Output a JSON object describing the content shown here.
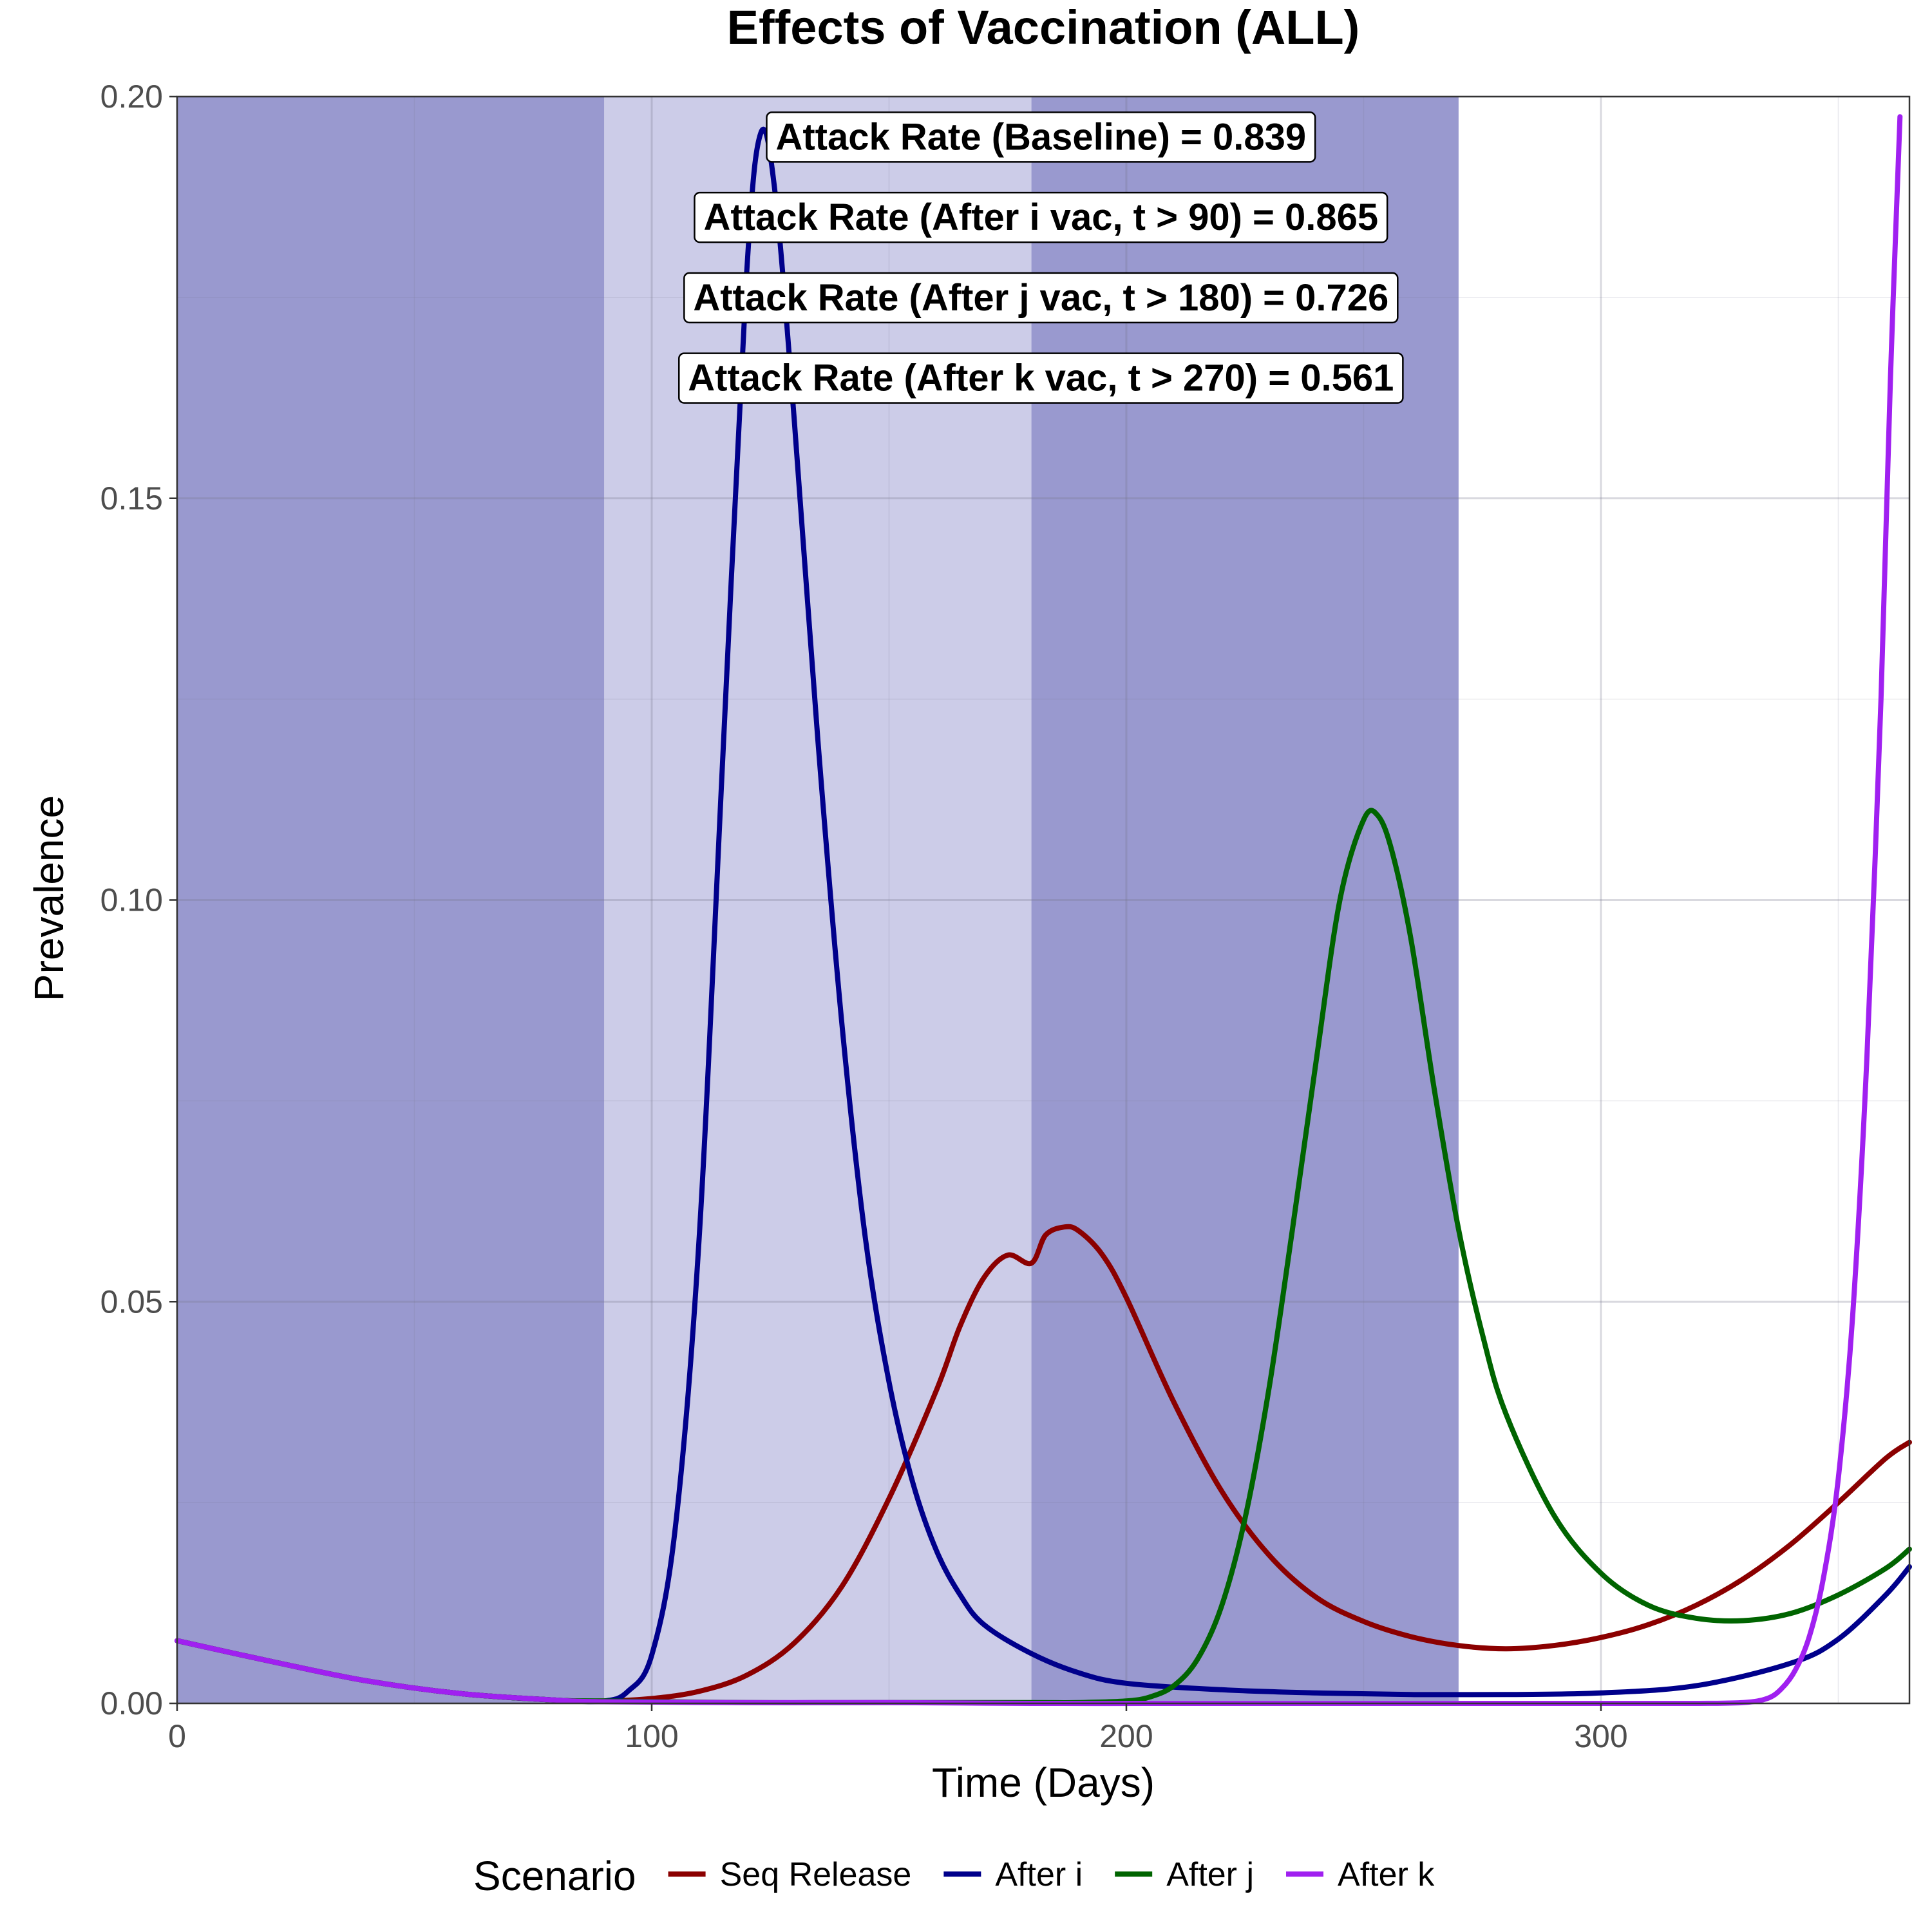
{
  "chart_data": {
    "type": "line",
    "title": "Effects of Vaccination (ALL)",
    "xlabel": "Time (Days)",
    "ylabel": "Prevalence",
    "xlim": [
      0,
      365
    ],
    "ylim": [
      0,
      0.2
    ],
    "x_ticks": [
      0,
      100,
      200,
      300
    ],
    "x_tick_labels": [
      "0",
      "100",
      "200",
      "300"
    ],
    "y_ticks": [
      0,
      0.05,
      0.1,
      0.15,
      0.2
    ],
    "y_tick_labels": [
      "0.00",
      "0.05",
      "0.10",
      "0.15",
      "0.20"
    ],
    "grid": true,
    "background_bands": [
      {
        "from": 0,
        "to": 90,
        "color": "#9999cf"
      },
      {
        "from": 90,
        "to": 180,
        "color": "#ccccE8"
      },
      {
        "from": 180,
        "to": 270,
        "color": "#9999cf"
      }
    ],
    "legend": {
      "title": "Scenario",
      "placement": "bottom",
      "entries": [
        {
          "label": "Seq Release",
          "color": "#8b0000"
        },
        {
          "label": "After i",
          "color": "#00008b"
        },
        {
          "label": "After j",
          "color": "#006400"
        },
        {
          "label": "After k",
          "color": "#a020f0"
        }
      ]
    },
    "annotations": [
      {
        "text": "Attack Rate (Baseline) = 0.839",
        "x": 182,
        "y": 0.195
      },
      {
        "text": "Attack Rate (After i vac, t > 90) = 0.865",
        "x": 182,
        "y": 0.185
      },
      {
        "text": "Attack Rate (After j vac, t > 180) = 0.726",
        "x": 182,
        "y": 0.175
      },
      {
        "text": "Attack Rate (After k vac, t > 270) = 0.561",
        "x": 182,
        "y": 0.165
      }
    ],
    "series": [
      {
        "name": "Seq Release",
        "color": "#8b0000",
        "x": [
          0,
          20,
          40,
          60,
          80,
          90,
          100,
          110,
          120,
          130,
          140,
          150,
          160,
          165,
          170,
          175,
          180,
          183,
          187,
          190,
          195,
          200,
          210,
          220,
          230,
          240,
          250,
          260,
          270,
          280,
          290,
          300,
          310,
          320,
          330,
          340,
          350,
          360,
          365
        ],
        "y": [
          0.0078,
          0.0052,
          0.0028,
          0.0012,
          0.0004,
          0.0003,
          0.0006,
          0.0015,
          0.0035,
          0.0075,
          0.0145,
          0.0255,
          0.039,
          0.047,
          0.053,
          0.0558,
          0.0548,
          0.0583,
          0.0593,
          0.0588,
          0.0558,
          0.0505,
          0.0375,
          0.0265,
          0.0185,
          0.0132,
          0.0102,
          0.0083,
          0.0072,
          0.0068,
          0.0072,
          0.0082,
          0.0098,
          0.0122,
          0.0155,
          0.0198,
          0.025,
          0.0305,
          0.0325
        ]
      },
      {
        "name": "After i",
        "color": "#00008b",
        "x": [
          0,
          20,
          40,
          60,
          80,
          90,
          95,
          100,
          105,
          110,
          115,
          120,
          123,
          126,
          130,
          135,
          140,
          145,
          150,
          155,
          160,
          165,
          170,
          180,
          190,
          200,
          220,
          240,
          260,
          280,
          300,
          320,
          340,
          350,
          360,
          365
        ],
        "y": [
          0.0078,
          0.0052,
          0.0028,
          0.0012,
          0.0004,
          0.0003,
          0.0015,
          0.006,
          0.022,
          0.058,
          0.118,
          0.178,
          0.1955,
          0.188,
          0.16,
          0.12,
          0.085,
          0.058,
          0.04,
          0.0275,
          0.019,
          0.0135,
          0.0098,
          0.0062,
          0.0038,
          0.0025,
          0.0017,
          0.0013,
          0.0011,
          0.0011,
          0.0013,
          0.0022,
          0.005,
          0.008,
          0.0135,
          0.017
        ]
      },
      {
        "name": "After j",
        "color": "#006400",
        "x": [
          0,
          20,
          40,
          60,
          80,
          90,
          120,
          150,
          180,
          190,
          200,
          205,
          210,
          215,
          220,
          225,
          230,
          235,
          240,
          245,
          250,
          253,
          256,
          260,
          265,
          270,
          275,
          280,
          290,
          300,
          310,
          320,
          330,
          340,
          350,
          360,
          365
        ],
        "y": [
          0.0078,
          0.0052,
          0.0028,
          0.0012,
          0.0004,
          0.0003,
          0.0001,
          0.0001,
          0.0001,
          0.0001,
          0.0003,
          0.0008,
          0.0022,
          0.0055,
          0.012,
          0.023,
          0.039,
          0.059,
          0.08,
          0.1,
          0.11,
          0.1105,
          0.106,
          0.095,
          0.076,
          0.059,
          0.046,
          0.036,
          0.0235,
          0.0162,
          0.0122,
          0.0106,
          0.0103,
          0.0112,
          0.0135,
          0.0168,
          0.0192
        ]
      },
      {
        "name": "After k",
        "color": "#a020f0",
        "x": [
          0,
          20,
          40,
          60,
          80,
          90,
          120,
          150,
          180,
          210,
          240,
          270,
          300,
          320,
          330,
          335,
          338,
          341,
          344,
          347,
          350,
          353,
          356,
          359,
          361,
          363
        ],
        "y": [
          0.0078,
          0.0052,
          0.0028,
          0.0012,
          0.0004,
          0.0002,
          0.0001,
          0.0001,
          0.0,
          0.0,
          0.0,
          0.0,
          0.0,
          0.0,
          0.0001,
          0.0006,
          0.0018,
          0.0042,
          0.0085,
          0.016,
          0.028,
          0.048,
          0.08,
          0.125,
          0.165,
          0.1975
        ]
      }
    ]
  }
}
